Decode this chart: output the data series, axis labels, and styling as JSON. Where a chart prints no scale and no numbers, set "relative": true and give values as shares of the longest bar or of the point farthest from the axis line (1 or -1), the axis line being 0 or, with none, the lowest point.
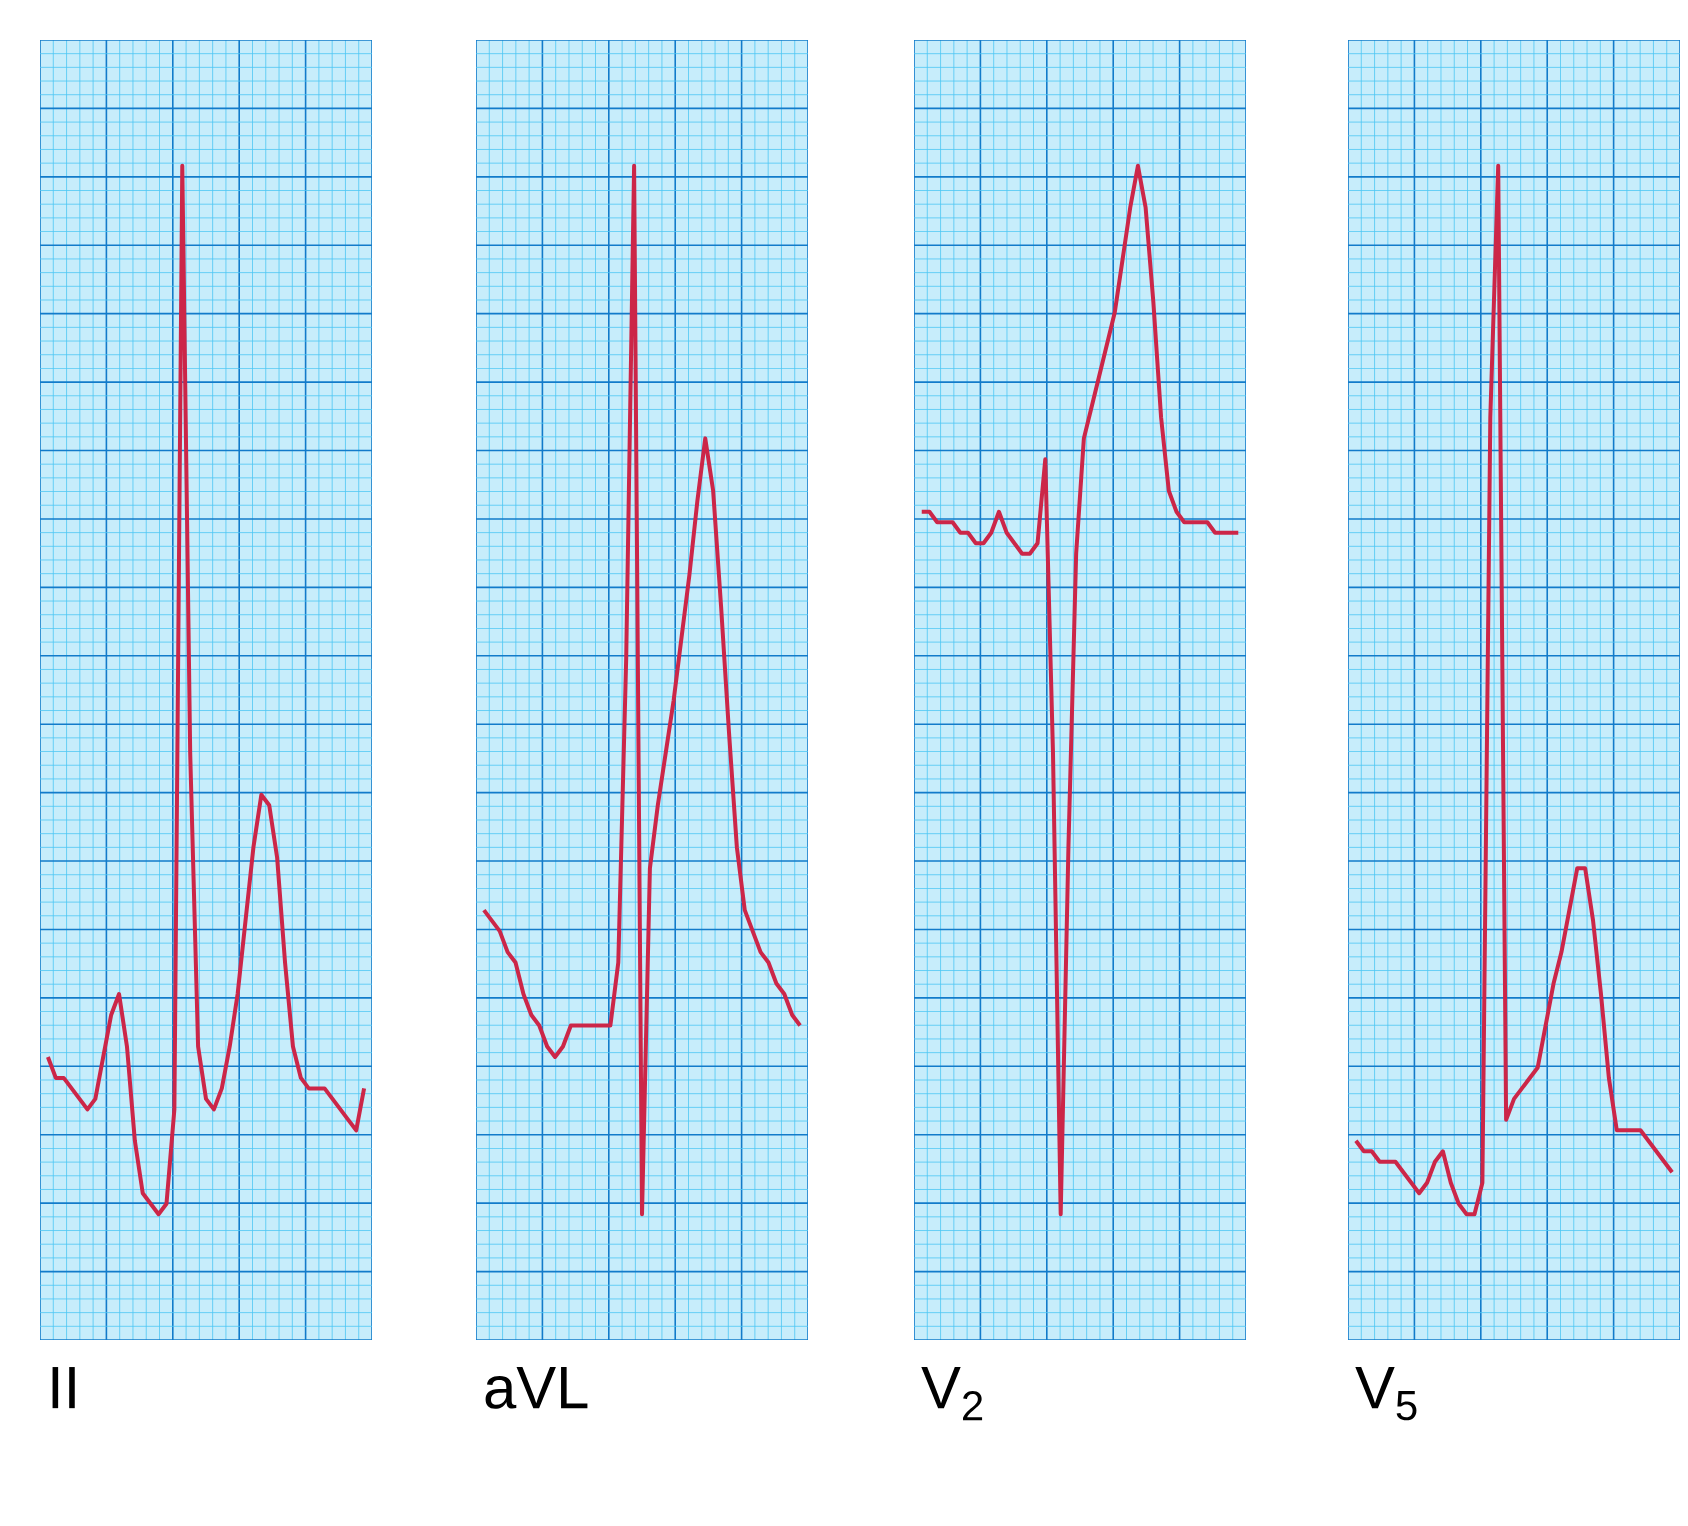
{
  "chart_data": [
    {
      "type": "line",
      "xlabel": "II",
      "relative": true,
      "grid": true,
      "categories": [
        null,
        null,
        null,
        null,
        null,
        null,
        null,
        null,
        null,
        null,
        null,
        null,
        null,
        null,
        null,
        null,
        null,
        null,
        null,
        null,
        null,
        null,
        null,
        null,
        null,
        null,
        null,
        null,
        null,
        null,
        null,
        null,
        null,
        null,
        null,
        null,
        null,
        null,
        null,
        null,
        null
      ],
      "series": [
        {
          "color": "#cc2648",
          "values": [
            0.15,
            0.13,
            0.13,
            0.12,
            0.11,
            0.1,
            0.11,
            0.15,
            0.19,
            0.21,
            0.16,
            0.07,
            0.02,
            0.01,
            0,
            0.01,
            0.1,
            1,
            0.44,
            0.16,
            0.11,
            0.1,
            0.12,
            0.16,
            0.21,
            0.28,
            0.35,
            0.4,
            0.39,
            0.34,
            0.24,
            0.16,
            0.13,
            0.12,
            0.12,
            0.12,
            0.11,
            0.1,
            0.09,
            0.08,
            0.12
          ]
        }
      ]
    },
    {
      "type": "line",
      "xlabel": "aVL",
      "relative": true,
      "grid": true,
      "categories": [
        null,
        null,
        null,
        null,
        null,
        null,
        null,
        null,
        null,
        null,
        null,
        null,
        null,
        null,
        null,
        null,
        null,
        null,
        null,
        null,
        null,
        null,
        null,
        null,
        null,
        null,
        null,
        null,
        null,
        null,
        null,
        null,
        null,
        null,
        null,
        null,
        null,
        null,
        null,
        null,
        null
      ],
      "series": [
        {
          "color": "#cc2648",
          "values": [
            0.29,
            0.28,
            0.27,
            0.25,
            0.24,
            0.21,
            0.19,
            0.18,
            0.16,
            0.15,
            0.16,
            0.18,
            0.18,
            0.18,
            0.18,
            0.18,
            0.18,
            0.24,
            0.53,
            1,
            0,
            0.33,
            0.39,
            0.44,
            0.49,
            0.55,
            0.61,
            0.68,
            0.74,
            0.69,
            0.58,
            0.46,
            0.35,
            0.29,
            0.27,
            0.25,
            0.24,
            0.22,
            0.21,
            0.19,
            0.18
          ]
        }
      ]
    },
    {
      "type": "line",
      "xlabel": "V$_{2}$",
      "relative": true,
      "grid": true,
      "categories": [
        null,
        null,
        null,
        null,
        null,
        null,
        null,
        null,
        null,
        null,
        null,
        null,
        null,
        null,
        null,
        null,
        null,
        null,
        null,
        null,
        null,
        null,
        null,
        null,
        null,
        null,
        null,
        null,
        null,
        null,
        null,
        null,
        null,
        null,
        null,
        null,
        null,
        null,
        null,
        null,
        null,
        null
      ],
      "series": [
        {
          "color": "#cc2648",
          "values": [
            0.67,
            0.67,
            0.66,
            0.66,
            0.66,
            0.65,
            0.65,
            0.64,
            0.64,
            0.65,
            0.67,
            0.65,
            0.64,
            0.63,
            0.63,
            0.64,
            0.72,
            0.44,
            0,
            0.35,
            0.63,
            0.74,
            0.77,
            0.8,
            0.83,
            0.86,
            0.91,
            0.96,
            1,
            0.96,
            0.87,
            0.76,
            0.69,
            0.67,
            0.66,
            0.66,
            0.66,
            0.66,
            0.65,
            0.65,
            0.65,
            0.65
          ]
        }
      ]
    },
    {
      "type": "line",
      "xlabel": "V$_{5}$",
      "relative": true,
      "grid": true,
      "categories": [
        null,
        null,
        null,
        null,
        null,
        null,
        null,
        null,
        null,
        null,
        null,
        null,
        null,
        null,
        null,
        null,
        null,
        null,
        null,
        null,
        null,
        null,
        null,
        null,
        null,
        null,
        null,
        null,
        null,
        null,
        null,
        null,
        null,
        null,
        null,
        null,
        null,
        null,
        null,
        null,
        null
      ],
      "series": [
        {
          "color": "#cc2648",
          "values": [
            0.07,
            0.06,
            0.06,
            0.05,
            0.05,
            0.05,
            0.04,
            0.03,
            0.02,
            0.03,
            0.05,
            0.06,
            0.03,
            0.01,
            0,
            0,
            0.03,
            0.76,
            1,
            0.09,
            0.11,
            0.12,
            0.13,
            0.14,
            0.18,
            0.22,
            0.25,
            0.29,
            0.33,
            0.33,
            0.28,
            0.21,
            0.13,
            0.08,
            0.08,
            0.08,
            0.08,
            0.07,
            0.06,
            0.05,
            0.04
          ]
        }
      ]
    }
  ]
}
